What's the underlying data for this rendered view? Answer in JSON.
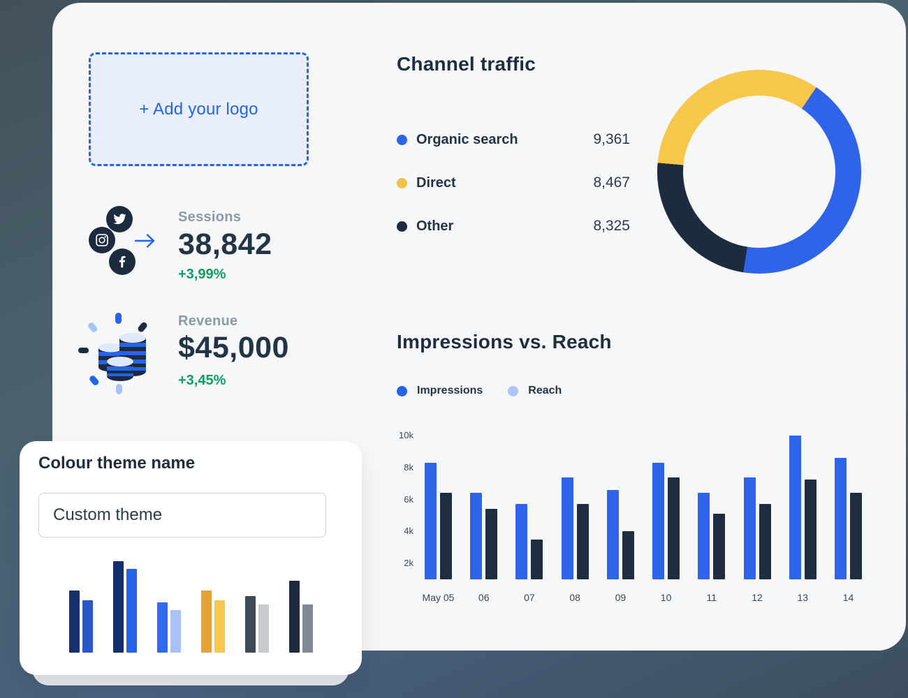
{
  "colors": {
    "accent_blue": "#2563eb",
    "bar_blue": "#2e63ea",
    "navy": "#1d2b3e",
    "yellow": "#f7c74b",
    "green": "#0c9f63",
    "light_blue": "#aec3f7",
    "card_bg": "#f6f7f9",
    "muted_label": "#8e99a6"
  },
  "logo_box": {
    "label": "+ Add your logo"
  },
  "social_icons": [
    {
      "name": "twitter-icon"
    },
    {
      "name": "instagram-icon"
    },
    {
      "name": "facebook-icon"
    }
  ],
  "stats": {
    "sessions": {
      "label": "Sessions",
      "value": "38,842",
      "delta": "+3,99%"
    },
    "revenue": {
      "label": "Revenue",
      "value": "$45,000",
      "delta": "+3,45%"
    }
  },
  "channel_traffic": {
    "title": "Channel traffic",
    "legend": [
      {
        "label": "Organic search",
        "value": "9,361",
        "color": "#2e63ea"
      },
      {
        "label": "Direct",
        "value": "8,467",
        "color": "#f3c146"
      },
      {
        "label": "Other",
        "value": "8,325",
        "color": "#1d2b3e"
      }
    ]
  },
  "impressions_chart": {
    "title": "Impressions vs. Reach",
    "legend": [
      {
        "label": "Impressions",
        "color": "#2563eb"
      },
      {
        "label": "Reach",
        "color": "#aec3f7"
      }
    ]
  },
  "theme_card": {
    "title": "Colour theme name",
    "input_value": "Custom theme",
    "palette": [
      {
        "colors": [
          "#16316e",
          "#2b55c8"
        ],
        "heights": [
          89,
          75
        ]
      },
      {
        "colors": [
          "#132e6b",
          "#2563eb"
        ],
        "heights": [
          131,
          120
        ]
      },
      {
        "colors": [
          "#2e6bf0",
          "#a8c2f7"
        ],
        "heights": [
          72,
          61
        ]
      },
      {
        "colors": [
          "#e3a338",
          "#f8c84e"
        ],
        "heights": [
          89,
          75
        ]
      },
      {
        "colors": [
          "#3d4a58",
          "#c6cbd1"
        ],
        "heights": [
          81,
          69
        ]
      },
      {
        "colors": [
          "#1d2c3d",
          "#7e8896"
        ],
        "heights": [
          103,
          69
        ]
      }
    ]
  },
  "chart_data": [
    {
      "type": "pie",
      "title": "Channel traffic",
      "labels": [
        "Organic search",
        "Direct",
        "Other"
      ],
      "values": [
        9361,
        8467,
        8325
      ],
      "colors": [
        "#2e63ea",
        "#f7c74b",
        "#1d2b3e"
      ],
      "donut": true,
      "legend_position": "left",
      "visual_segments": [
        {
          "color": "#f7c74b",
          "from": 0,
          "to": 34
        },
        {
          "color": "#2e63ea",
          "from": 34,
          "to": 189
        },
        {
          "color": "#1d2b3e",
          "from": 189,
          "to": 275
        },
        {
          "color": "#f7c74b",
          "from": 275,
          "to": 360
        }
      ]
    },
    {
      "type": "bar",
      "title": "Impressions vs. Reach",
      "categories": [
        "May 05",
        "06",
        "07",
        "08",
        "09",
        "10",
        "11",
        "12",
        "13",
        "14"
      ],
      "series": [
        {
          "name": "Impressions",
          "color": "#2e63ea",
          "values": [
            8300,
            6400,
            5700,
            7400,
            6600,
            8300,
            6400,
            7400,
            10000,
            8600
          ]
        },
        {
          "name": "Reach",
          "color": "#1e2d40",
          "values": [
            6400,
            5400,
            3500,
            5700,
            4000,
            7400,
            5100,
            5700,
            7250,
            6400
          ]
        }
      ],
      "xlabel": "",
      "ylabel": "",
      "y_ticks": [
        2000,
        4000,
        6000,
        8000,
        10000
      ],
      "y_tick_labels": [
        "2k",
        "4k",
        "6k",
        "8k",
        "10k"
      ],
      "ylim": [
        1000,
        10000
      ],
      "grid": false,
      "legend_position": "top-left"
    }
  ]
}
